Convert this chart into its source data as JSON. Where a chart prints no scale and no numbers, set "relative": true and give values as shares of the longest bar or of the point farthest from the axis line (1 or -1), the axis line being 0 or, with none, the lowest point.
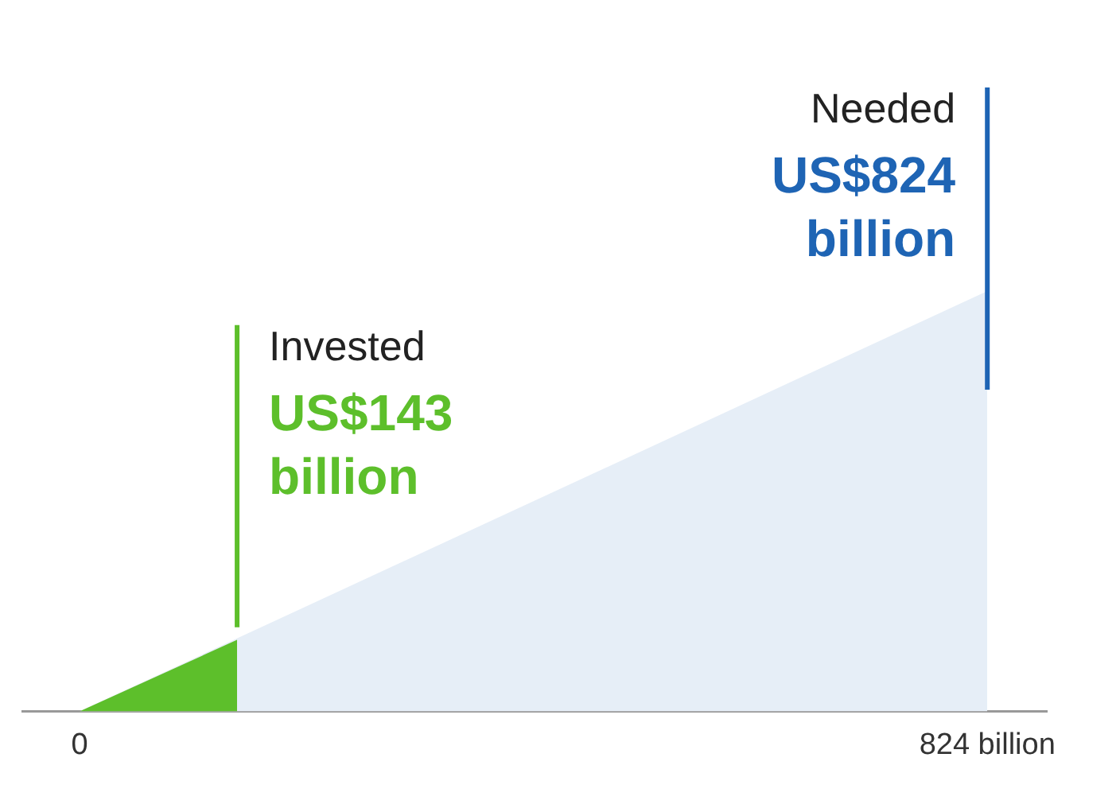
{
  "chart_data": {
    "type": "area",
    "relative": true,
    "xlim": [
      -52,
      878
    ],
    "xticks": [
      0,
      {
        "value": 824,
        "label": "824 billion"
      }
    ],
    "series": [
      {
        "color": "#e6eef7",
        "x": [
          0,
          824
        ],
        "values": [
          0,
          1
        ]
      },
      {
        "color": "#5dbf2b",
        "x": [
          0,
          143
        ],
        "values": [
          0,
          0.17
        ]
      }
    ],
    "ref_lines": [
      {
        "axis": "x",
        "value": 143,
        "label": "Invested",
        "color": "#5dbf2b"
      },
      {
        "axis": "x",
        "value": 824,
        "label": "Needed",
        "color": "#1e64b4"
      }
    ],
    "annotations": [
      {
        "text": "US$143 billion",
        "x": 143
      },
      {
        "text": "US$824 billion",
        "x": 824
      }
    ]
  }
}
